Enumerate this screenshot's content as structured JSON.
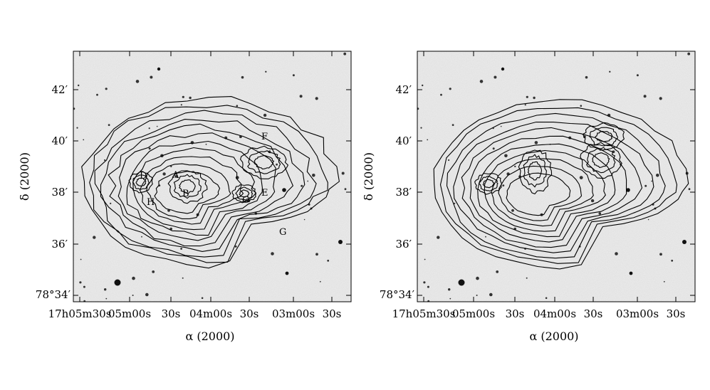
{
  "figure": {
    "panels": [
      {
        "id": "left",
        "x_axis_label": "α (2000)",
        "y_axis_label": "δ (2000)",
        "x_tick_labels": [
          "17h05m30s",
          "05m00s",
          "30s",
          "04m00s",
          "30s",
          "03m00s",
          "30s"
        ],
        "y_tick_labels": [
          "42′",
          "40′",
          "38′",
          "36′",
          "78°34′"
        ],
        "region_labels": [
          "A",
          "B",
          "C",
          "D",
          "E",
          "F",
          "G",
          "H"
        ]
      },
      {
        "id": "right",
        "x_axis_label": "α (2000)",
        "y_axis_label": "δ (2000)",
        "x_tick_labels": [
          "17h05m30s",
          "05m00s",
          "30s",
          "04m00s",
          "30s",
          "03m00s",
          "30s"
        ],
        "y_tick_labels": [
          "42′",
          "40′",
          "38′",
          "36′",
          "78°34′"
        ],
        "region_labels": []
      }
    ]
  }
}
